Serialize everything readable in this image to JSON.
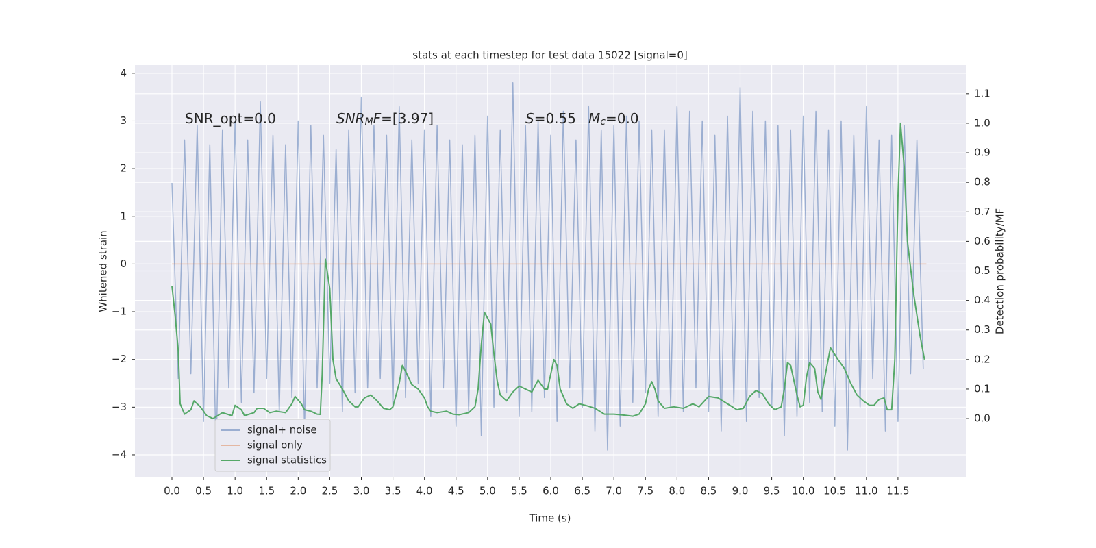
{
  "chart_data": {
    "type": "line",
    "title": "stats at each timestep for test data 15022 [signal=0]",
    "x_label": "Time (s)",
    "y_label": "Whitened strain",
    "y2_label": "Detection probability/MF",
    "xlim": [
      -0.586,
      12.575
    ],
    "ylim": [
      -4.46,
      4.17
    ],
    "y2lim": [
      -0.197,
      1.197
    ],
    "xticks": [
      {
        "value": 0,
        "label": "0.0"
      },
      0.5,
      {
        "value": 1,
        "label": "1.0"
      },
      1.5,
      {
        "value": 2,
        "label": "2.0"
      },
      2.5,
      {
        "value": 3,
        "label": "3.0"
      },
      3.5,
      {
        "value": 4,
        "label": "4.0"
      },
      4.5,
      {
        "value": 5,
        "label": "5.0"
      },
      5.5,
      {
        "value": 6,
        "label": "6.0"
      },
      6.5,
      {
        "value": 7,
        "label": "7.0"
      },
      7.5,
      {
        "value": 8,
        "label": "8.0"
      },
      8.5,
      {
        "value": 9,
        "label": "9.0"
      },
      9.5,
      {
        "value": 10,
        "label": "10.0"
      },
      10.5,
      {
        "value": 11,
        "label": "11.0"
      },
      11.5
    ],
    "yticks": [
      {
        "value": -4,
        "label": "−4"
      },
      {
        "value": -3,
        "label": "−3"
      },
      {
        "value": -2,
        "label": "−2"
      },
      {
        "value": -1,
        "label": "−1"
      },
      0,
      1,
      2,
      3,
      4
    ],
    "y2ticks": [
      {
        "value": 0,
        "label": "0.0"
      },
      0.1,
      0.2,
      0.3,
      0.4,
      0.5,
      0.6,
      0.7,
      0.8,
      0.9,
      {
        "value": 1,
        "label": "1.0"
      },
      1.1
    ],
    "grid": true,
    "legend": "lower left",
    "annotations": [
      {
        "segments": [
          {
            "text": "SNR_opt=0.0",
            "style": "normal"
          }
        ]
      },
      {
        "segments": [
          {
            "text": "SNR",
            "style": "italic"
          },
          {
            "text": "M",
            "style": "italic-sub"
          },
          {
            "text": "F",
            "style": "italic"
          },
          {
            "text": "=[3.97]",
            "style": "normal"
          }
        ]
      },
      {
        "segments": [
          {
            "text": "S",
            "style": "italic"
          },
          {
            "text": "=0.55",
            "style": "normal"
          },
          {
            "text": "M",
            "style": "italic-gap"
          },
          {
            "text": "c",
            "style": "italic-sub"
          },
          {
            "text": "=0.0",
            "style": "normal"
          }
        ]
      }
    ],
    "series": [
      {
        "name": "signal+ noise",
        "color": "#4c72b0",
        "alpha": 0.5,
        "x": [
          0,
          0.1,
          0.2,
          0.3,
          0.4,
          0.5,
          0.6,
          0.7,
          0.8,
          0.9,
          1,
          1.1,
          1.2,
          1.3,
          1.4,
          1.5,
          1.6,
          1.7,
          1.8,
          1.9,
          2,
          2.1,
          2.2,
          2.3,
          2.4,
          2.5,
          2.6,
          2.7,
          2.8,
          2.9,
          3,
          3.1,
          3.2,
          3.3,
          3.4,
          3.5,
          3.6,
          3.7,
          3.8,
          3.9,
          4,
          4.1,
          4.2,
          4.3,
          4.4,
          4.5,
          4.6,
          4.7,
          4.8,
          4.9,
          5,
          5.1,
          5.2,
          5.3,
          5.4,
          5.5,
          5.6,
          5.7,
          5.8,
          5.9,
          6,
          6.1,
          6.2,
          6.3,
          6.4,
          6.5,
          6.6,
          6.7,
          6.8,
          6.9,
          7,
          7.1,
          7.2,
          7.3,
          7.4,
          7.5,
          7.6,
          7.7,
          7.8,
          7.9,
          8,
          8.1,
          8.2,
          8.3,
          8.4,
          8.5,
          8.6,
          8.7,
          8.8,
          8.9,
          9,
          9.1,
          9.2,
          9.3,
          9.4,
          9.5,
          9.6,
          9.7,
          9.8,
          9.9,
          10,
          10.1,
          10.2,
          10.3,
          10.4,
          10.5,
          10.6,
          10.7,
          10.8,
          10.9,
          11,
          11.1,
          11.2,
          11.3,
          11.4,
          11.5,
          11.6,
          11.7,
          11.8,
          11.9
        ],
        "values": [
          1.7,
          -2.4,
          2.6,
          -2.3,
          2.9,
          -3.3,
          2.5,
          -4.1,
          2.8,
          -2.6,
          3.0,
          -2.9,
          2.6,
          -2.7,
          3.4,
          -2.4,
          2.7,
          -3.1,
          2.5,
          -2.8,
          3.0,
          -3.5,
          2.9,
          -2.6,
          2.7,
          -2.5,
          2.4,
          -3.1,
          2.8,
          -2.7,
          3.5,
          -2.6,
          2.9,
          -2.4,
          2.7,
          -3.0,
          3.3,
          -2.8,
          2.6,
          -2.5,
          2.8,
          -3.2,
          2.9,
          -2.6,
          2.6,
          -3.4,
          2.5,
          -3.1,
          2.7,
          -3.6,
          3.1,
          -3.0,
          2.8,
          -2.7,
          3.8,
          -3.2,
          2.9,
          -3.1,
          3.0,
          -2.8,
          2.7,
          -3.3,
          3.2,
          -2.6,
          2.6,
          -3.0,
          3.3,
          -3.5,
          2.8,
          -3.9,
          2.9,
          -3.4,
          3.1,
          -2.9,
          3.0,
          -2.7,
          2.8,
          -3.2,
          2.8,
          -3.0,
          3.3,
          -3.1,
          3.2,
          -2.6,
          3.0,
          -3.1,
          2.7,
          -3.5,
          3.1,
          -2.9,
          3.7,
          -3.3,
          3.2,
          -2.8,
          3.0,
          -3.0,
          2.9,
          -3.6,
          2.8,
          -3.2,
          3.1,
          -2.9,
          3.2,
          -3.1,
          2.8,
          -3.4,
          3.0,
          -3.9,
          2.7,
          -3.0,
          3.3,
          -2.4,
          2.6,
          -3.5,
          2.7,
          -3.3,
          2.9,
          -2.3,
          2.6,
          -2.2
        ]
      },
      {
        "name": "signal only",
        "color": "#dd8452",
        "alpha": 0.5,
        "x": [
          0,
          11.95
        ],
        "values": [
          0,
          0
        ]
      },
      {
        "name": "signal statistics",
        "color": "#55a868",
        "alpha": 1,
        "axis": "y2",
        "x": [
          0,
          0.05,
          0.1,
          0.13,
          0.2,
          0.3,
          0.35,
          0.45,
          0.55,
          0.65,
          0.8,
          0.95,
          1.0,
          1.1,
          1.15,
          1.3,
          1.35,
          1.45,
          1.55,
          1.65,
          1.8,
          1.9,
          1.95,
          2.05,
          2.1,
          2.2,
          2.3,
          2.35,
          2.38,
          2.43,
          2.5,
          2.55,
          2.6,
          2.7,
          2.8,
          2.9,
          2.95,
          3.05,
          3.15,
          3.25,
          3.35,
          3.45,
          3.5,
          3.6,
          3.65,
          3.7,
          3.8,
          3.9,
          4.0,
          4.05,
          4.1,
          4.2,
          4.35,
          4.45,
          4.55,
          4.7,
          4.8,
          4.85,
          4.9,
          4.95,
          5.05,
          5.1,
          5.15,
          5.2,
          5.3,
          5.4,
          5.5,
          5.6,
          5.7,
          5.8,
          5.9,
          5.95,
          6.05,
          6.1,
          6.15,
          6.25,
          6.35,
          6.45,
          6.55,
          6.7,
          6.85,
          7.0,
          7.15,
          7.3,
          7.4,
          7.5,
          7.55,
          7.6,
          7.65,
          7.7,
          7.8,
          7.95,
          8.1,
          8.25,
          8.35,
          8.5,
          8.65,
          8.8,
          8.95,
          9.05,
          9.15,
          9.25,
          9.35,
          9.45,
          9.55,
          9.65,
          9.7,
          9.75,
          9.8,
          9.9,
          9.95,
          10.0,
          10.05,
          10.1,
          10.18,
          10.23,
          10.28,
          10.35,
          10.43,
          10.55,
          10.65,
          10.75,
          10.85,
          10.95,
          11.05,
          11.12,
          11.2,
          11.28,
          11.33,
          11.4,
          11.45,
          11.5,
          11.54,
          11.6,
          11.65,
          11.75,
          11.85,
          11.92
        ],
        "values": [
          0.45,
          0.35,
          0.23,
          0.05,
          0.015,
          0.03,
          0.06,
          0.04,
          0.01,
          0.0,
          0.02,
          0.01,
          0.045,
          0.03,
          0.01,
          0.02,
          0.035,
          0.035,
          0.02,
          0.025,
          0.02,
          0.05,
          0.075,
          0.05,
          0.03,
          0.025,
          0.015,
          0.014,
          0.15,
          0.54,
          0.44,
          0.2,
          0.135,
          0.1,
          0.06,
          0.04,
          0.04,
          0.07,
          0.08,
          0.06,
          0.035,
          0.03,
          0.04,
          0.12,
          0.18,
          0.16,
          0.115,
          0.1,
          0.07,
          0.04,
          0.025,
          0.02,
          0.025,
          0.015,
          0.013,
          0.02,
          0.04,
          0.1,
          0.25,
          0.36,
          0.32,
          0.22,
          0.13,
          0.08,
          0.06,
          0.09,
          0.11,
          0.1,
          0.09,
          0.13,
          0.1,
          0.1,
          0.2,
          0.18,
          0.1,
          0.05,
          0.035,
          0.05,
          0.045,
          0.035,
          0.015,
          0.015,
          0.012,
          0.008,
          0.015,
          0.05,
          0.1,
          0.125,
          0.1,
          0.06,
          0.035,
          0.04,
          0.035,
          0.05,
          0.04,
          0.075,
          0.07,
          0.05,
          0.03,
          0.035,
          0.075,
          0.095,
          0.085,
          0.05,
          0.03,
          0.04,
          0.1,
          0.19,
          0.18,
          0.08,
          0.04,
          0.045,
          0.14,
          0.19,
          0.17,
          0.09,
          0.065,
          0.15,
          0.24,
          0.2,
          0.17,
          0.12,
          0.08,
          0.06,
          0.045,
          0.045,
          0.065,
          0.07,
          0.03,
          0.03,
          0.2,
          0.75,
          1.0,
          0.85,
          0.6,
          0.42,
          0.28,
          0.2
        ]
      }
    ]
  }
}
